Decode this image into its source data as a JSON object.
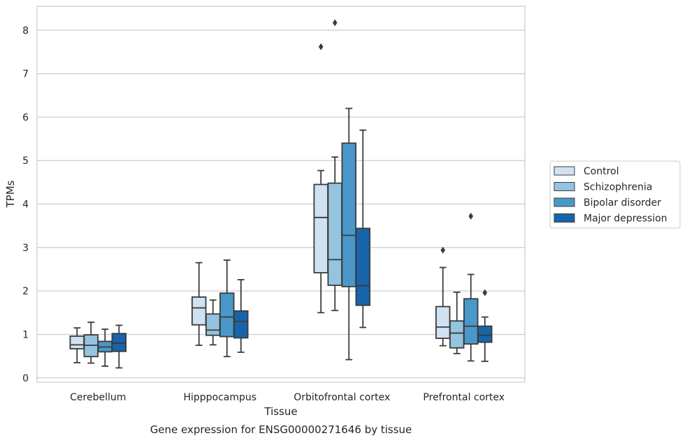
{
  "caption": "Gene expression for ENSG00000271646 by tissue",
  "chart_data": {
    "type": "boxplot",
    "xlabel": "Tissue",
    "ylabel": "TPMs",
    "ylim": [
      -0.1,
      8.55
    ],
    "yticks": [
      0,
      1,
      2,
      3,
      4,
      5,
      6,
      7,
      8
    ],
    "grid": "horizontal",
    "legend_position": "right",
    "categories": [
      "Cerebellum",
      "Hipppocampus",
      "Orbitofrontal cortex",
      "Prefrontal cortex"
    ],
    "series": [
      {
        "name": "Control",
        "color": "#d0e1f2",
        "boxes": [
          {
            "whislo": 0.35,
            "q1": 0.67,
            "med": 0.76,
            "q3": 0.96,
            "whishi": 1.15,
            "fliers": []
          },
          {
            "whislo": 0.75,
            "q1": 1.22,
            "med": 1.61,
            "q3": 1.86,
            "whishi": 2.65,
            "fliers": []
          },
          {
            "whislo": 1.5,
            "q1": 2.42,
            "med": 3.69,
            "q3": 4.45,
            "whishi": 4.77,
            "fliers": [
              7.62
            ]
          },
          {
            "whislo": 0.74,
            "q1": 0.91,
            "med": 1.17,
            "q3": 1.64,
            "whishi": 2.54,
            "fliers": [
              2.94
            ]
          }
        ]
      },
      {
        "name": "Schizophrenia",
        "color": "#94c4df",
        "boxes": [
          {
            "whislo": 0.34,
            "q1": 0.49,
            "med": 0.75,
            "q3": 0.99,
            "whishi": 1.28,
            "fliers": []
          },
          {
            "whislo": 0.76,
            "q1": 0.98,
            "med": 1.1,
            "q3": 1.47,
            "whishi": 1.79,
            "fliers": []
          },
          {
            "whislo": 1.55,
            "q1": 2.13,
            "med": 2.72,
            "q3": 4.48,
            "whishi": 5.08,
            "fliers": [
              8.17
            ]
          },
          {
            "whislo": 0.56,
            "q1": 0.69,
            "med": 1.03,
            "q3": 1.31,
            "whishi": 1.97,
            "fliers": []
          }
        ]
      },
      {
        "name": "Bipolar disorder",
        "color": "#4a98c9",
        "boxes": [
          {
            "whislo": 0.27,
            "q1": 0.6,
            "med": 0.71,
            "q3": 0.84,
            "whishi": 1.12,
            "fliers": []
          },
          {
            "whislo": 0.49,
            "q1": 0.95,
            "med": 1.4,
            "q3": 1.95,
            "whishi": 2.71,
            "fliers": []
          },
          {
            "whislo": 0.42,
            "q1": 2.1,
            "med": 3.28,
            "q3": 5.4,
            "whishi": 6.2,
            "fliers": []
          },
          {
            "whislo": 0.39,
            "q1": 0.78,
            "med": 1.19,
            "q3": 1.82,
            "whishi": 2.38,
            "fliers": [
              3.72
            ]
          }
        ]
      },
      {
        "name": "Major depression",
        "color": "#1764ab",
        "boxes": [
          {
            "whislo": 0.23,
            "q1": 0.61,
            "med": 0.8,
            "q3": 1.02,
            "whishi": 1.21,
            "fliers": []
          },
          {
            "whislo": 0.59,
            "q1": 0.92,
            "med": 1.3,
            "q3": 1.54,
            "whishi": 2.26,
            "fliers": []
          },
          {
            "whislo": 1.16,
            "q1": 1.67,
            "med": 2.12,
            "q3": 3.44,
            "whishi": 5.7,
            "fliers": []
          },
          {
            "whislo": 0.38,
            "q1": 0.82,
            "med": 0.98,
            "q3": 1.19,
            "whishi": 1.4,
            "fliers": [
              1.96
            ]
          }
        ]
      }
    ]
  }
}
